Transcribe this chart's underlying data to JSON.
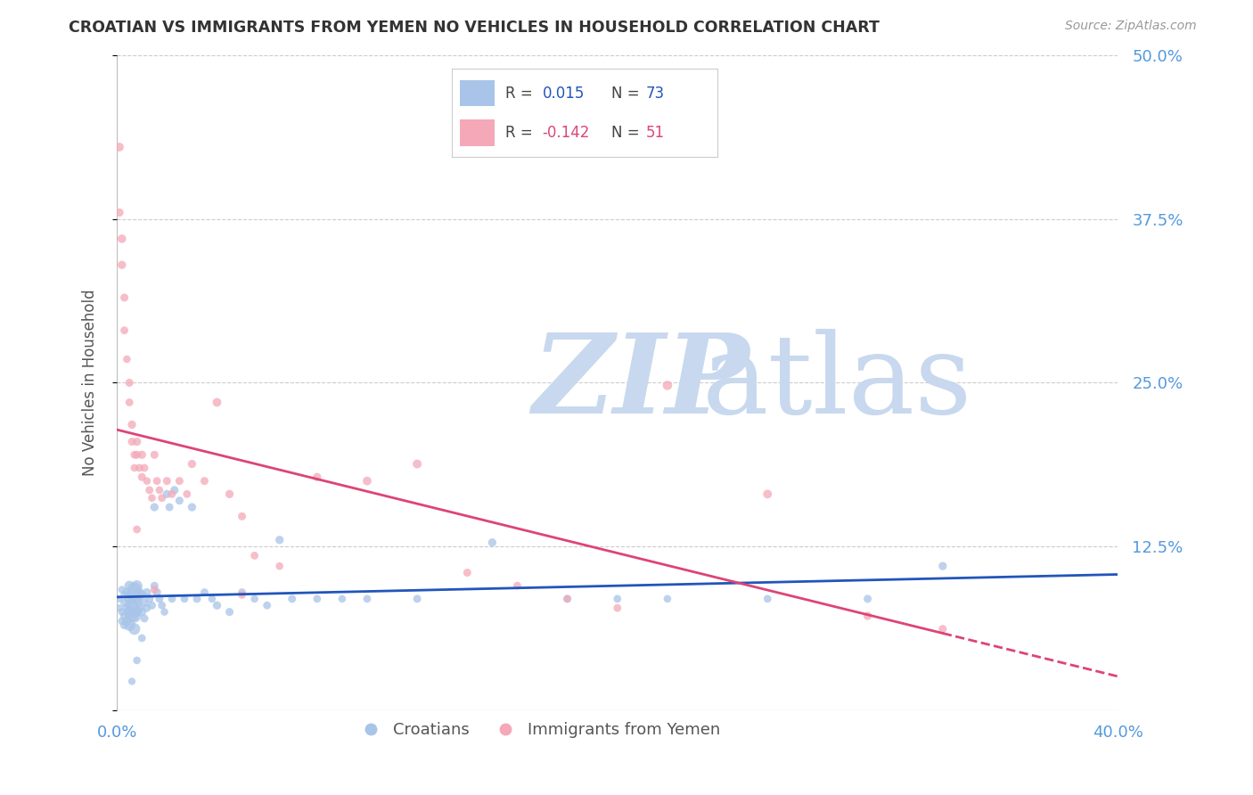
{
  "title": "CROATIAN VS IMMIGRANTS FROM YEMEN NO VEHICLES IN HOUSEHOLD CORRELATION CHART",
  "source": "Source: ZipAtlas.com",
  "ylabel": "No Vehicles in Household",
  "blue_color": "#a8c4e8",
  "pink_color": "#f4a8b8",
  "blue_line_color": "#2255bb",
  "pink_line_color": "#dd4477",
  "watermark_zip_color": "#c8d8ee",
  "watermark_atlas_color": "#c8d8ee",
  "background_color": "#ffffff",
  "grid_color": "#cccccc",
  "title_color": "#333333",
  "axis_label_color": "#5599dd",
  "legend_r_blue": "0.015",
  "legend_n_blue": "73",
  "legend_r_pink": "-0.142",
  "legend_n_pink": "51",
  "xlim": [
    0.0,
    0.4
  ],
  "ylim": [
    0.0,
    0.5
  ],
  "ytick_positions": [
    0.0,
    0.125,
    0.25,
    0.375,
    0.5
  ],
  "ytick_labels": [
    "",
    "12.5%",
    "25.0%",
    "37.5%",
    "50.0%"
  ],
  "blue_scatter_x": [
    0.001,
    0.001,
    0.002,
    0.002,
    0.002,
    0.003,
    0.003,
    0.003,
    0.003,
    0.004,
    0.004,
    0.004,
    0.005,
    0.005,
    0.005,
    0.005,
    0.006,
    0.006,
    0.006,
    0.007,
    0.007,
    0.007,
    0.007,
    0.008,
    0.008,
    0.008,
    0.009,
    0.009,
    0.01,
    0.01,
    0.011,
    0.011,
    0.012,
    0.012,
    0.013,
    0.014,
    0.015,
    0.015,
    0.016,
    0.017,
    0.018,
    0.019,
    0.02,
    0.021,
    0.022,
    0.023,
    0.025,
    0.027,
    0.03,
    0.032,
    0.035,
    0.038,
    0.04,
    0.045,
    0.05,
    0.055,
    0.06,
    0.065,
    0.07,
    0.08,
    0.09,
    0.1,
    0.12,
    0.15,
    0.18,
    0.2,
    0.22,
    0.26,
    0.3,
    0.33,
    0.01,
    0.008,
    0.006
  ],
  "blue_scatter_y": [
    0.085,
    0.078,
    0.092,
    0.075,
    0.068,
    0.088,
    0.082,
    0.072,
    0.065,
    0.09,
    0.078,
    0.068,
    0.095,
    0.085,
    0.075,
    0.065,
    0.088,
    0.08,
    0.072,
    0.092,
    0.082,
    0.072,
    0.062,
    0.095,
    0.085,
    0.075,
    0.09,
    0.078,
    0.088,
    0.075,
    0.082,
    0.07,
    0.09,
    0.078,
    0.085,
    0.08,
    0.155,
    0.095,
    0.09,
    0.085,
    0.08,
    0.075,
    0.165,
    0.155,
    0.085,
    0.168,
    0.16,
    0.085,
    0.155,
    0.085,
    0.09,
    0.085,
    0.08,
    0.075,
    0.09,
    0.085,
    0.08,
    0.13,
    0.085,
    0.085,
    0.085,
    0.085,
    0.085,
    0.128,
    0.085,
    0.085,
    0.085,
    0.085,
    0.085,
    0.11,
    0.055,
    0.038,
    0.022
  ],
  "blue_scatter_size": [
    35,
    35,
    38,
    38,
    40,
    40,
    42,
    45,
    48,
    50,
    55,
    60,
    65,
    70,
    80,
    90,
    100,
    110,
    120,
    140,
    160,
    120,
    90,
    80,
    70,
    60,
    55,
    50,
    55,
    50,
    45,
    42,
    45,
    42,
    45,
    42,
    45,
    42,
    45,
    42,
    40,
    38,
    45,
    42,
    40,
    45,
    42,
    40,
    45,
    42,
    40,
    38,
    45,
    42,
    40,
    38,
    40,
    45,
    42,
    40,
    38,
    40,
    42,
    45,
    42,
    40,
    38,
    40,
    42,
    45,
    40,
    38,
    35
  ],
  "pink_scatter_x": [
    0.001,
    0.001,
    0.002,
    0.002,
    0.003,
    0.003,
    0.004,
    0.005,
    0.005,
    0.006,
    0.006,
    0.007,
    0.007,
    0.008,
    0.008,
    0.009,
    0.01,
    0.01,
    0.011,
    0.012,
    0.013,
    0.014,
    0.015,
    0.016,
    0.017,
    0.018,
    0.02,
    0.022,
    0.025,
    0.028,
    0.03,
    0.035,
    0.04,
    0.045,
    0.05,
    0.055,
    0.065,
    0.08,
    0.1,
    0.12,
    0.14,
    0.16,
    0.18,
    0.2,
    0.22,
    0.26,
    0.3,
    0.33,
    0.008,
    0.05,
    0.015
  ],
  "pink_scatter_y": [
    0.43,
    0.38,
    0.36,
    0.34,
    0.315,
    0.29,
    0.268,
    0.25,
    0.235,
    0.218,
    0.205,
    0.195,
    0.185,
    0.205,
    0.195,
    0.185,
    0.195,
    0.178,
    0.185,
    0.175,
    0.168,
    0.162,
    0.195,
    0.175,
    0.168,
    0.162,
    0.175,
    0.165,
    0.175,
    0.165,
    0.188,
    0.175,
    0.235,
    0.165,
    0.148,
    0.118,
    0.11,
    0.178,
    0.175,
    0.188,
    0.105,
    0.095,
    0.085,
    0.078,
    0.248,
    0.165,
    0.072,
    0.062,
    0.138,
    0.088,
    0.092
  ],
  "pink_scatter_size": [
    50,
    45,
    48,
    45,
    42,
    40,
    38,
    42,
    40,
    45,
    42,
    40,
    38,
    45,
    42,
    40,
    45,
    42,
    40,
    38,
    40,
    38,
    42,
    40,
    38,
    40,
    42,
    40,
    42,
    40,
    45,
    42,
    50,
    45,
    42,
    40,
    38,
    45,
    50,
    52,
    42,
    40,
    38,
    40,
    58,
    50,
    45,
    42,
    40,
    40,
    40
  ]
}
